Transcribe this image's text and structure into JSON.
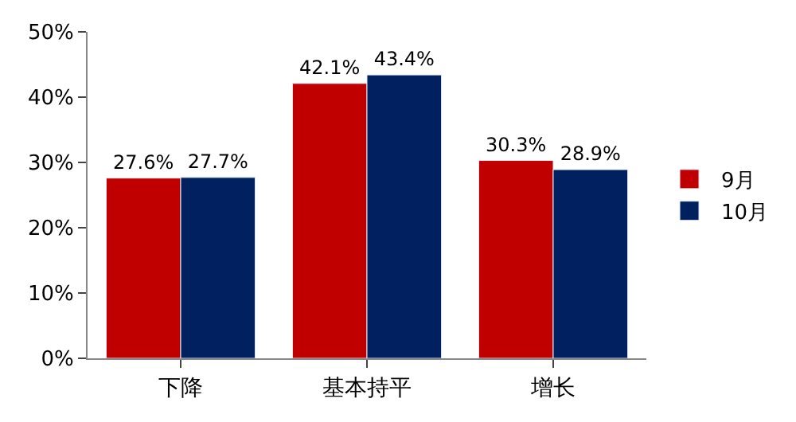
{
  "chart_data": {
    "type": "bar",
    "categories": [
      "下降",
      "基本持平",
      "增长"
    ],
    "series": [
      {
        "name": "9月",
        "color": "#c00000",
        "values": [
          27.6,
          42.1,
          30.3
        ],
        "value_labels": [
          "27.6%",
          "42.1%",
          "30.3%"
        ]
      },
      {
        "name": "10月",
        "color": "#002060",
        "values": [
          27.7,
          43.4,
          28.9
        ],
        "value_labels": [
          "27.7%",
          "43.4%",
          "28.9%"
        ]
      }
    ],
    "ylim": [
      0,
      50
    ],
    "yticks": [
      {
        "value": 0,
        "label": "0%"
      },
      {
        "value": 10,
        "label": "10%"
      },
      {
        "value": 20,
        "label": "20%"
      },
      {
        "value": 30,
        "label": "30%"
      },
      {
        "value": 40,
        "label": "40%"
      },
      {
        "value": 50,
        "label": "50%"
      }
    ],
    "grid": false,
    "legend": "right"
  }
}
